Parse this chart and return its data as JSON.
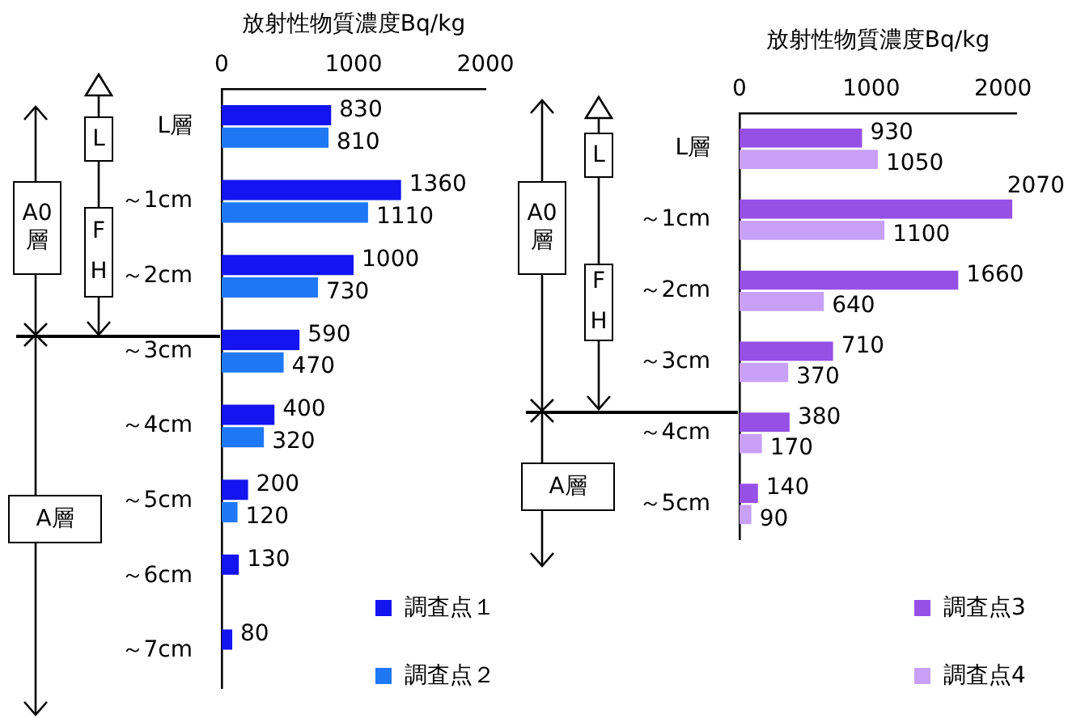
{
  "chart_data": [
    {
      "type": "bar",
      "orientation": "horizontal",
      "xlabel": "放射性物質濃度Bq/kg",
      "categories": [
        "L層",
        "～1cm",
        "～2cm",
        "～3cm",
        "～4cm",
        "～5cm",
        "～6cm",
        "～7cm"
      ],
      "series": [
        {
          "name": "調査点１",
          "color": "#1414f0",
          "values": [
            830,
            1360,
            1000,
            590,
            400,
            200,
            130,
            80
          ]
        },
        {
          "name": "調査点２",
          "color": "#1e78f5",
          "values": [
            810,
            1110,
            730,
            470,
            320,
            120,
            null,
            null
          ]
        }
      ],
      "xlim": [
        0,
        2000
      ],
      "xticks": [
        0,
        1000,
        2000
      ],
      "data_labels": true,
      "legend": "bottom right",
      "annotations": [
        "A0層",
        "L",
        "F",
        "H",
        "A層"
      ]
    },
    {
      "type": "bar",
      "orientation": "horizontal",
      "xlabel": "放射性物質濃度Bq/kg",
      "categories": [
        "L層",
        "～1cm",
        "～2cm",
        "～3cm",
        "～4cm",
        "～5cm"
      ],
      "series": [
        {
          "name": "調査点3",
          "color": "#9650e6",
          "values": [
            930,
            2070,
            1660,
            710,
            380,
            140
          ]
        },
        {
          "name": "調査点4",
          "color": "#c8a0fa",
          "values": [
            1050,
            1100,
            640,
            370,
            170,
            90
          ]
        }
      ],
      "xlim": [
        0,
        2100
      ],
      "xticks": [
        0,
        1000,
        2000
      ],
      "data_labels": true,
      "legend": "bottom right",
      "annotations": [
        "A0層",
        "L",
        "F",
        "H",
        "A層"
      ]
    }
  ]
}
